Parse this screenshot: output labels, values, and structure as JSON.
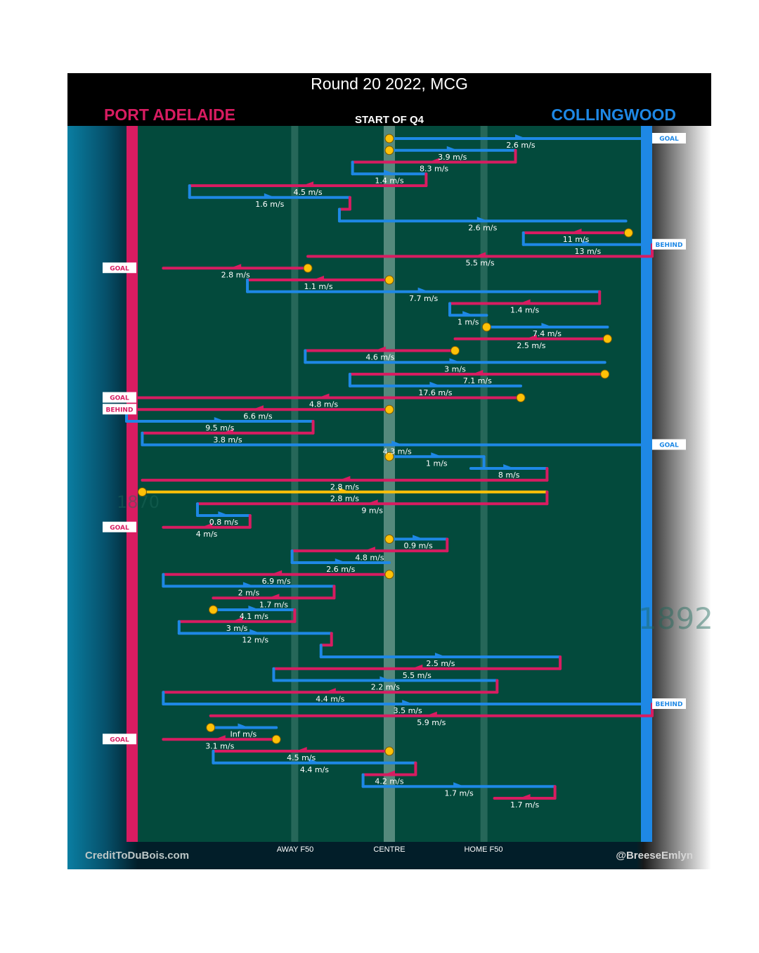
{
  "title": "Round 20 2022, MCG",
  "subtitle": "START OF Q4",
  "teams": {
    "home": "PORT ADELAIDE",
    "away": "COLLINGWOOD"
  },
  "axis_labels": {
    "away_f50": "AWAY F50",
    "centre": "CENTRE",
    "home_f50": "HOME F50"
  },
  "credits": {
    "left": "CreditToDuBois.com",
    "right": "@BreeseEmlyn"
  },
  "watermarks": {
    "home_year": "1870",
    "away_year": "1892"
  },
  "colors": {
    "port_adelaide": "#d81c61",
    "collingwood": "#1e88e5",
    "stoppage": "#ffc107",
    "ground": "#034a3c",
    "possession_marker": "#ffc107",
    "text": "#ffffff"
  },
  "chart_data": {
    "type": "line",
    "title": "Round 20 2022, MCG",
    "subtitle": "START OF Q4",
    "xlabel": "",
    "ylabel": "",
    "x_axis_ticks": [
      "AWAY F50",
      "CENTRE",
      "HOME F50"
    ],
    "series": [
      {
        "name": "PORT ADELAIDE",
        "color": "#d81c61"
      },
      {
        "name": "COLLINGWOOD",
        "color": "#1e88e5"
      }
    ],
    "grid": false,
    "chains": [
      {
        "team": "COLLINGWOOD",
        "start": 0.0,
        "end": 1.0,
        "speed": "2.6 m/s",
        "stoppage": true,
        "outcome": "GOAL"
      },
      {
        "team": "COLLINGWOOD",
        "start": 0.0,
        "end": 0.48,
        "speed": "3.9 m/s",
        "stoppage": true
      },
      {
        "team": "PORT ADELAIDE",
        "start": 0.48,
        "end": -0.14,
        "speed": "8.3 m/s"
      },
      {
        "team": "COLLINGWOOD",
        "start": -0.14,
        "end": 0.14,
        "speed": "1.4 m/s"
      },
      {
        "team": "PORT ADELAIDE",
        "start": 0.14,
        "end": -0.76,
        "speed": "4.5 m/s"
      },
      {
        "team": "COLLINGWOOD",
        "start": -0.76,
        "end": -0.15,
        "speed": "1.6 m/s"
      },
      {
        "team": "PORT ADELAIDE",
        "start": -0.15,
        "end": -0.19
      },
      {
        "team": "COLLINGWOOD",
        "start": -0.19,
        "end": 0.9,
        "speed": "2.6 m/s"
      },
      {
        "team": "PORT ADELAIDE",
        "start": 0.91,
        "end": 0.51,
        "speed": "11 m/s",
        "stoppage": true
      },
      {
        "team": "COLLINGWOOD",
        "start": 0.51,
        "end": 1.0,
        "speed": "13 m/s",
        "outcome": "BEHIND"
      },
      {
        "team": "PORT ADELAIDE",
        "start": 1.0,
        "end": -0.31,
        "speed": "5.5 m/s"
      },
      {
        "team": "PORT ADELAIDE",
        "start": -0.31,
        "end": -0.86,
        "speed": "2.8 m/s",
        "stoppage": true,
        "outcome": "GOAL"
      },
      {
        "team": "PORT ADELAIDE",
        "start": 0.0,
        "end": -0.54,
        "speed": "1.1 m/s",
        "stoppage": true
      },
      {
        "team": "COLLINGWOOD",
        "start": -0.54,
        "end": 0.8,
        "speed": "7.7 m/s"
      },
      {
        "team": "PORT ADELAIDE",
        "start": 0.8,
        "end": 0.23,
        "speed": "1.4 m/s"
      },
      {
        "team": "COLLINGWOOD",
        "start": 0.23,
        "end": 0.37,
        "speed": "1 m/s"
      },
      {
        "team": "COLLINGWOOD",
        "start": 0.37,
        "end": 0.83,
        "speed": "7.4 m/s",
        "stoppage": true
      },
      {
        "team": "PORT ADELAIDE",
        "start": 0.83,
        "end": 0.25,
        "speed": "2.5 m/s",
        "stoppage": true
      },
      {
        "team": "PORT ADELAIDE",
        "start": 0.25,
        "end": -0.32,
        "speed": "4.6 m/s",
        "stoppage": true
      },
      {
        "team": "COLLINGWOOD",
        "start": -0.32,
        "end": 0.82,
        "speed": "3 m/s"
      },
      {
        "team": "PORT ADELAIDE",
        "start": 0.82,
        "end": -0.15,
        "speed": "7.1 m/s",
        "stoppage": true
      },
      {
        "team": "COLLINGWOOD",
        "start": -0.15,
        "end": 0.5,
        "speed": "17.6 m/s"
      },
      {
        "team": "PORT ADELAIDE",
        "start": 0.5,
        "end": -1.0,
        "speed": "4.8 m/s",
        "stoppage": true,
        "outcome": "GOAL"
      },
      {
        "team": "PORT ADELAIDE",
        "start": 0.0,
        "end": -1.0,
        "speed": "6.6 m/s",
        "stoppage": true,
        "outcome": "BEHIND"
      },
      {
        "team": "COLLINGWOOD",
        "start": -1.0,
        "end": -0.29,
        "speed": "9.5 m/s"
      },
      {
        "team": "PORT ADELAIDE",
        "start": -0.29,
        "end": -0.94,
        "speed": "3.8 m/s"
      },
      {
        "team": "COLLINGWOOD",
        "start": -0.94,
        "end": 1.0,
        "speed": "4.3 m/s",
        "outcome": "GOAL"
      },
      {
        "team": "COLLINGWOOD",
        "start": 0.0,
        "end": 0.36,
        "speed": "1 m/s",
        "stoppage": true
      },
      {
        "team": "COLLINGWOOD",
        "start": 0.31,
        "end": 0.6,
        "speed": "8 m/s"
      },
      {
        "team": "PORT ADELAIDE",
        "start": 0.6,
        "end": -0.94,
        "speed": "2.8 m/s"
      },
      {
        "team": "NEUTRAL",
        "start": -0.94,
        "end": 0.6,
        "speed": "2.8 m/s",
        "stoppage": true
      },
      {
        "team": "PORT ADELAIDE",
        "start": 0.6,
        "end": -0.73,
        "speed": "9 m/s"
      },
      {
        "team": "COLLINGWOOD",
        "start": -0.73,
        "end": -0.53,
        "speed": "0.8 m/s"
      },
      {
        "team": "PORT ADELAIDE",
        "start": -0.53,
        "end": -0.86,
        "speed": "4 m/s",
        "outcome": "GOAL"
      },
      {
        "team": "COLLINGWOOD",
        "start": 0.0,
        "end": 0.22,
        "speed": "0.9 m/s",
        "stoppage": true
      },
      {
        "team": "PORT ADELAIDE",
        "start": 0.22,
        "end": -0.37,
        "speed": "4.8 m/s"
      },
      {
        "team": "COLLINGWOOD",
        "start": -0.37,
        "end": 0.0,
        "speed": "2.6 m/s"
      },
      {
        "team": "PORT ADELAIDE",
        "start": 0.0,
        "end": -0.86,
        "speed": "6.9 m/s",
        "stoppage": true
      },
      {
        "team": "COLLINGWOOD",
        "start": -0.86,
        "end": -0.21,
        "speed": "2 m/s"
      },
      {
        "team": "PORT ADELAIDE",
        "start": -0.21,
        "end": -0.67,
        "speed": "1.7 m/s"
      },
      {
        "team": "COLLINGWOOD",
        "start": -0.67,
        "end": -0.36,
        "speed": "4.1 m/s",
        "stoppage": true
      },
      {
        "team": "PORT ADELAIDE",
        "start": -0.36,
        "end": -0.8,
        "speed": "3 m/s"
      },
      {
        "team": "COLLINGWOOD",
        "start": -0.8,
        "end": -0.22,
        "speed": "12 m/s"
      },
      {
        "team": "PORT ADELAIDE",
        "start": -0.22,
        "end": -0.26
      },
      {
        "team": "COLLINGWOOD",
        "start": -0.26,
        "end": 0.65,
        "speed": "2.5 m/s"
      },
      {
        "team": "PORT ADELAIDE",
        "start": 0.65,
        "end": -0.44,
        "speed": "5.5 m/s"
      },
      {
        "team": "COLLINGWOOD",
        "start": -0.44,
        "end": 0.41,
        "speed": "2.2 m/s"
      },
      {
        "team": "PORT ADELAIDE",
        "start": 0.41,
        "end": -0.86,
        "speed": "4.4 m/s"
      },
      {
        "team": "COLLINGWOOD",
        "start": -0.86,
        "end": 1.0,
        "speed": "3.5 m/s",
        "outcome": "BEHIND"
      },
      {
        "team": "PORT ADELAIDE",
        "start": 1.0,
        "end": -0.68,
        "speed": "5.9 m/s"
      },
      {
        "team": "COLLINGWOOD",
        "start": -0.68,
        "end": -0.43,
        "speed": "Inf m/s",
        "stoppage": true
      },
      {
        "team": "PORT ADELAIDE",
        "start": -0.43,
        "end": -0.86,
        "speed": "3.1 m/s",
        "stoppage": true,
        "outcome": "GOAL"
      },
      {
        "team": "PORT ADELAIDE",
        "start": 0.0,
        "end": -0.67,
        "speed": "4.5 m/s",
        "stoppage": true
      },
      {
        "team": "COLLINGWOOD",
        "start": -0.67,
        "end": 0.1,
        "speed": "4.4 m/s"
      },
      {
        "team": "PORT ADELAIDE",
        "start": 0.1,
        "end": -0.1,
        "speed": "4.2 m/s"
      },
      {
        "team": "COLLINGWOOD",
        "start": -0.1,
        "end": 0.63,
        "speed": "1.7 m/s"
      },
      {
        "team": "PORT ADELAIDE",
        "start": 0.63,
        "end": 0.4,
        "speed": "1.7 m/s"
      }
    ]
  }
}
